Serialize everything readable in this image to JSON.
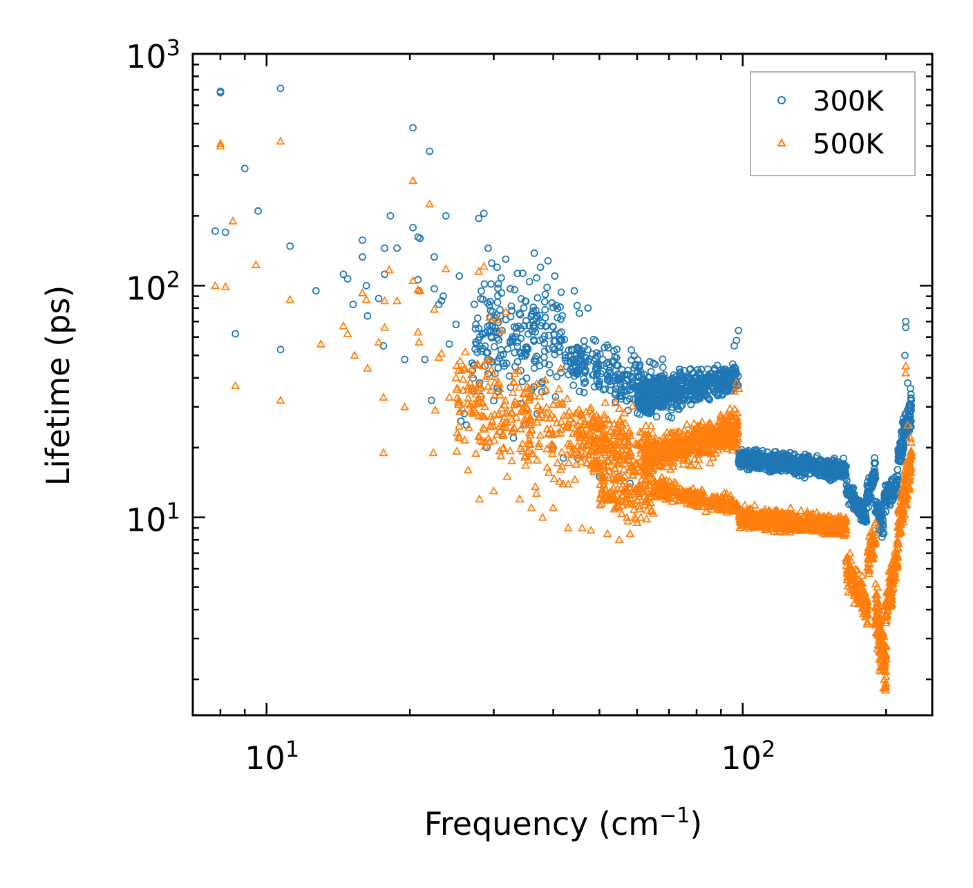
{
  "chart_data": {
    "type": "scatter",
    "xscale": "log",
    "yscale": "log",
    "xlim": [
      7.0,
      250.0
    ],
    "ylim": [
      1.4,
      1000
    ],
    "xlabel": {
      "text": "Frequency (cm",
      "sup": "−1",
      "tail": ")"
    },
    "ylabel": "Lifetime (ps)",
    "x_ticks": [
      {
        "value": 10,
        "base": "10",
        "exp": "1"
      },
      {
        "value": 100,
        "base": "10",
        "exp": "2"
      }
    ],
    "y_ticks": [
      {
        "value": 10,
        "base": "10",
        "exp": "1"
      },
      {
        "value": 100,
        "base": "10",
        "exp": "2"
      },
      {
        "value": 1000,
        "base": "10",
        "exp": "3"
      }
    ],
    "legend_position": "top-right",
    "series": [
      {
        "name": "300K",
        "marker": "circle",
        "color": "#1f77b4",
        "points": [
          [
            8.0,
            690
          ],
          [
            8.0,
            680
          ],
          [
            10.7,
            710
          ],
          [
            8.2,
            170
          ],
          [
            9.0,
            320
          ],
          [
            9.6,
            210
          ],
          [
            11.2,
            148
          ],
          [
            7.8,
            172
          ],
          [
            8.6,
            62
          ],
          [
            10.7,
            53
          ],
          [
            12.7,
            95
          ],
          [
            14.5,
            112
          ],
          [
            14.8,
            107
          ],
          [
            15.2,
            83
          ],
          [
            15.9,
            157
          ],
          [
            15.9,
            133
          ],
          [
            16.2,
            100
          ],
          [
            16.3,
            74
          ],
          [
            17.2,
            88
          ],
          [
            17.7,
            145
          ],
          [
            17.7,
            112
          ],
          [
            17.6,
            55
          ],
          [
            18.2,
            200
          ],
          [
            18.8,
            145
          ],
          [
            19.5,
            48
          ],
          [
            20.3,
            480
          ],
          [
            20.3,
            178
          ],
          [
            20.8,
            162
          ],
          [
            21.0,
            160
          ],
          [
            20.8,
            106
          ],
          [
            20.9,
            95
          ],
          [
            21.5,
            48
          ],
          [
            22.0,
            380
          ],
          [
            22.5,
            133
          ],
          [
            22.5,
            97
          ],
          [
            22.2,
            32
          ],
          [
            23.0,
            83
          ],
          [
            23.3,
            86
          ],
          [
            23.5,
            90
          ],
          [
            23.8,
            200
          ],
          [
            24.2,
            56
          ],
          [
            25.0,
            68
          ],
          [
            25.4,
            110
          ],
          [
            25.6,
            26
          ],
          [
            26.3,
            25
          ],
          [
            27.5,
            57
          ],
          [
            27.9,
            195
          ],
          [
            28.6,
            205
          ],
          [
            29.2,
            145
          ],
          [
            29.7,
            125
          ],
          [
            30.5,
            120
          ],
          [
            31.1,
            108
          ],
          [
            31.8,
            130
          ],
          [
            32.5,
            97
          ],
          [
            33.2,
            96
          ],
          [
            34.5,
            113
          ],
          [
            36.5,
            138
          ],
          [
            37.6,
            120
          ],
          [
            39.0,
            128
          ],
          [
            40.3,
            110
          ],
          [
            44.3,
            95
          ],
          [
            44.9,
            82
          ],
          [
            45.4,
            76
          ],
          [
            47.3,
            80
          ],
          [
            26.0,
            28
          ],
          [
            28.0,
            38
          ],
          [
            29.0,
            20
          ],
          [
            33.0,
            22
          ],
          [
            35.0,
            25
          ],
          [
            37.0,
            28
          ],
          [
            40.0,
            20
          ],
          [
            42.0,
            18
          ],
          [
            45.0,
            18
          ],
          [
            50.0,
            15
          ],
          [
            55.0,
            15
          ],
          [
            58.0,
            14
          ],
          [
            98.0,
            64
          ],
          [
            97.0,
            58
          ],
          [
            96.0,
            55
          ],
          [
            220.0,
            70
          ],
          [
            220.0,
            66
          ],
          [
            219.0,
            50
          ],
          [
            222.0,
            38
          ],
          [
            225.0,
            36
          ]
        ],
        "cloud_segments": [
          {
            "x0": 27,
            "x1": 42,
            "y0": 60,
            "y1": 60,
            "spread": 2.2,
            "count": 220
          },
          {
            "x0": 42,
            "x1": 75,
            "y0": 48,
            "y1": 34,
            "spread": 1.45,
            "count": 300
          },
          {
            "x0": 60,
            "x1": 98,
            "y0": 32,
            "y1": 40,
            "spread": 1.25,
            "count": 520
          },
          {
            "x0": 98,
            "x1": 165,
            "y0": 18,
            "y1": 16,
            "spread": 1.15,
            "count": 760
          },
          {
            "x0": 165,
            "x1": 182,
            "y0": 13,
            "y1": 10,
            "spread": 1.15,
            "count": 120
          },
          {
            "x0": 182,
            "x1": 190,
            "y0": 12,
            "y1": 16,
            "spread": 1.2,
            "count": 60
          },
          {
            "x0": 190,
            "x1": 198,
            "y0": 11,
            "y1": 9,
            "spread": 1.25,
            "count": 50
          },
          {
            "x0": 198,
            "x1": 212,
            "y0": 12,
            "y1": 14,
            "spread": 1.2,
            "count": 90
          },
          {
            "x0": 212,
            "x1": 226,
            "y0": 18,
            "y1": 30,
            "spread": 1.3,
            "count": 110
          }
        ]
      },
      {
        "name": "500K",
        "marker": "triangle",
        "color": "#ff7f0e",
        "points": [
          [
            8.0,
            410
          ],
          [
            8.0,
            400
          ],
          [
            10.7,
            420
          ],
          [
            8.5,
            190
          ],
          [
            9.5,
            123
          ],
          [
            11.2,
            87
          ],
          [
            7.8,
            100
          ],
          [
            8.2,
            99
          ],
          [
            8.6,
            37
          ],
          [
            10.7,
            32
          ],
          [
            13.0,
            56
          ],
          [
            14.5,
            67
          ],
          [
            14.8,
            62
          ],
          [
            15.3,
            50
          ],
          [
            15.9,
            93
          ],
          [
            16.2,
            87
          ],
          [
            16.3,
            44
          ],
          [
            17.2,
            57
          ],
          [
            17.7,
            86
          ],
          [
            17.7,
            66
          ],
          [
            17.6,
            33
          ],
          [
            17.6,
            19
          ],
          [
            18.1,
            117
          ],
          [
            18.8,
            86
          ],
          [
            19.5,
            30
          ],
          [
            20.3,
            284
          ],
          [
            20.3,
            105
          ],
          [
            20.8,
            96
          ],
          [
            21.0,
            95
          ],
          [
            20.8,
            63
          ],
          [
            20.9,
            57
          ],
          [
            22.0,
            225
          ],
          [
            22.5,
            79
          ],
          [
            22.4,
            19
          ],
          [
            22.6,
            29
          ],
          [
            23.0,
            49
          ],
          [
            23.3,
            51
          ],
          [
            23.8,
            118
          ],
          [
            24.2,
            33
          ],
          [
            25.0,
            40
          ],
          [
            25.4,
            22
          ],
          [
            26.5,
            16
          ],
          [
            27.5,
            34
          ],
          [
            27.9,
            115
          ],
          [
            28.6,
            121
          ],
          [
            29.4,
            73
          ],
          [
            30.5,
            71
          ],
          [
            31.1,
            64
          ],
          [
            31.8,
            77
          ],
          [
            28.0,
            12
          ],
          [
            30.0,
            13
          ],
          [
            32.0,
            15
          ],
          [
            34.0,
            12
          ],
          [
            36.0,
            11
          ],
          [
            38.0,
            10
          ],
          [
            40.0,
            11
          ],
          [
            43.0,
            9
          ],
          [
            46.0,
            9
          ],
          [
            48.0,
            8.8
          ],
          [
            52.0,
            8.5
          ],
          [
            55.0,
            8.0
          ],
          [
            58.0,
            8.5
          ],
          [
            60.0,
            9.5
          ],
          [
            97.0,
            38
          ],
          [
            96.0,
            35
          ],
          [
            98.0,
            36
          ],
          [
            220.0,
            45
          ],
          [
            220.0,
            42
          ],
          [
            222.0,
            25
          ],
          [
            225.0,
            22
          ]
        ],
        "cloud_segments": [
          {
            "x0": 25,
            "x1": 45,
            "y0": 32,
            "y1": 22,
            "spread": 2.2,
            "count": 260
          },
          {
            "x0": 45,
            "x1": 65,
            "y0": 22,
            "y1": 18,
            "spread": 1.7,
            "count": 280
          },
          {
            "x0": 50,
            "x1": 65,
            "y0": 13,
            "y1": 12,
            "spread": 1.35,
            "count": 110
          },
          {
            "x0": 62,
            "x1": 98,
            "y0": 18,
            "y1": 24,
            "spread": 1.3,
            "count": 520
          },
          {
            "x0": 65,
            "x1": 98,
            "y0": 13.5,
            "y1": 11,
            "spread": 1.15,
            "count": 260
          },
          {
            "x0": 98,
            "x1": 165,
            "y0": 10,
            "y1": 9.2,
            "spread": 1.15,
            "count": 780
          },
          {
            "x0": 165,
            "x1": 183,
            "y0": 6,
            "y1": 4,
            "spread": 1.3,
            "count": 150
          },
          {
            "x0": 183,
            "x1": 190,
            "y0": 6.5,
            "y1": 8,
            "spread": 1.3,
            "count": 60
          },
          {
            "x0": 190,
            "x1": 200,
            "y0": 4,
            "y1": 2.2,
            "spread": 1.5,
            "count": 120
          },
          {
            "x0": 200,
            "x1": 212,
            "y0": 4,
            "y1": 7,
            "spread": 1.35,
            "count": 110
          },
          {
            "x0": 212,
            "x1": 226,
            "y0": 9,
            "y1": 18,
            "spread": 1.35,
            "count": 130
          }
        ]
      }
    ]
  }
}
